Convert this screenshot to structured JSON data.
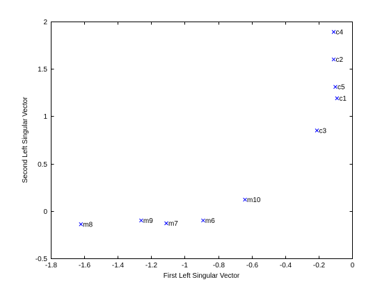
{
  "chart_data": {
    "type": "scatter",
    "title": "",
    "xlabel": "First Left Singular Vector",
    "ylabel": "Second Left Singular Vector",
    "xlim": [
      -1.8,
      0
    ],
    "ylim": [
      -0.5,
      2
    ],
    "xticks": [
      -1.8,
      -1.6,
      -1.4,
      -1.2,
      -1,
      -0.8,
      -0.6,
      -0.4,
      -0.2,
      0
    ],
    "xtick_labels": [
      "-1.8",
      "-1.6",
      "-1.4",
      "-1.2",
      "-1",
      "-0.8",
      "-0.6",
      "-0.4",
      "-0.2",
      "0"
    ],
    "yticks": [
      -0.5,
      0,
      0.5,
      1,
      1.5,
      2
    ],
    "ytick_labels": [
      "-0.5",
      "0",
      "0.5",
      "1",
      "1.5",
      "2"
    ],
    "grid": false,
    "legend": false,
    "marker": "x",
    "marker_color": "#0000ff",
    "points": [
      {
        "label": "c4",
        "x": -0.11,
        "y": 1.89
      },
      {
        "label": "c2",
        "x": -0.11,
        "y": 1.6
      },
      {
        "label": "c5",
        "x": -0.1,
        "y": 1.31
      },
      {
        "label": "c1",
        "x": -0.09,
        "y": 1.19
      },
      {
        "label": "c3",
        "x": -0.21,
        "y": 0.85
      },
      {
        "label": "m10",
        "x": -0.64,
        "y": 0.12
      },
      {
        "label": "m6",
        "x": -0.89,
        "y": -0.1
      },
      {
        "label": "m7",
        "x": -1.11,
        "y": -0.13
      },
      {
        "label": "m9",
        "x": -1.26,
        "y": -0.1
      },
      {
        "label": "m8",
        "x": -1.62,
        "y": -0.14
      }
    ]
  }
}
